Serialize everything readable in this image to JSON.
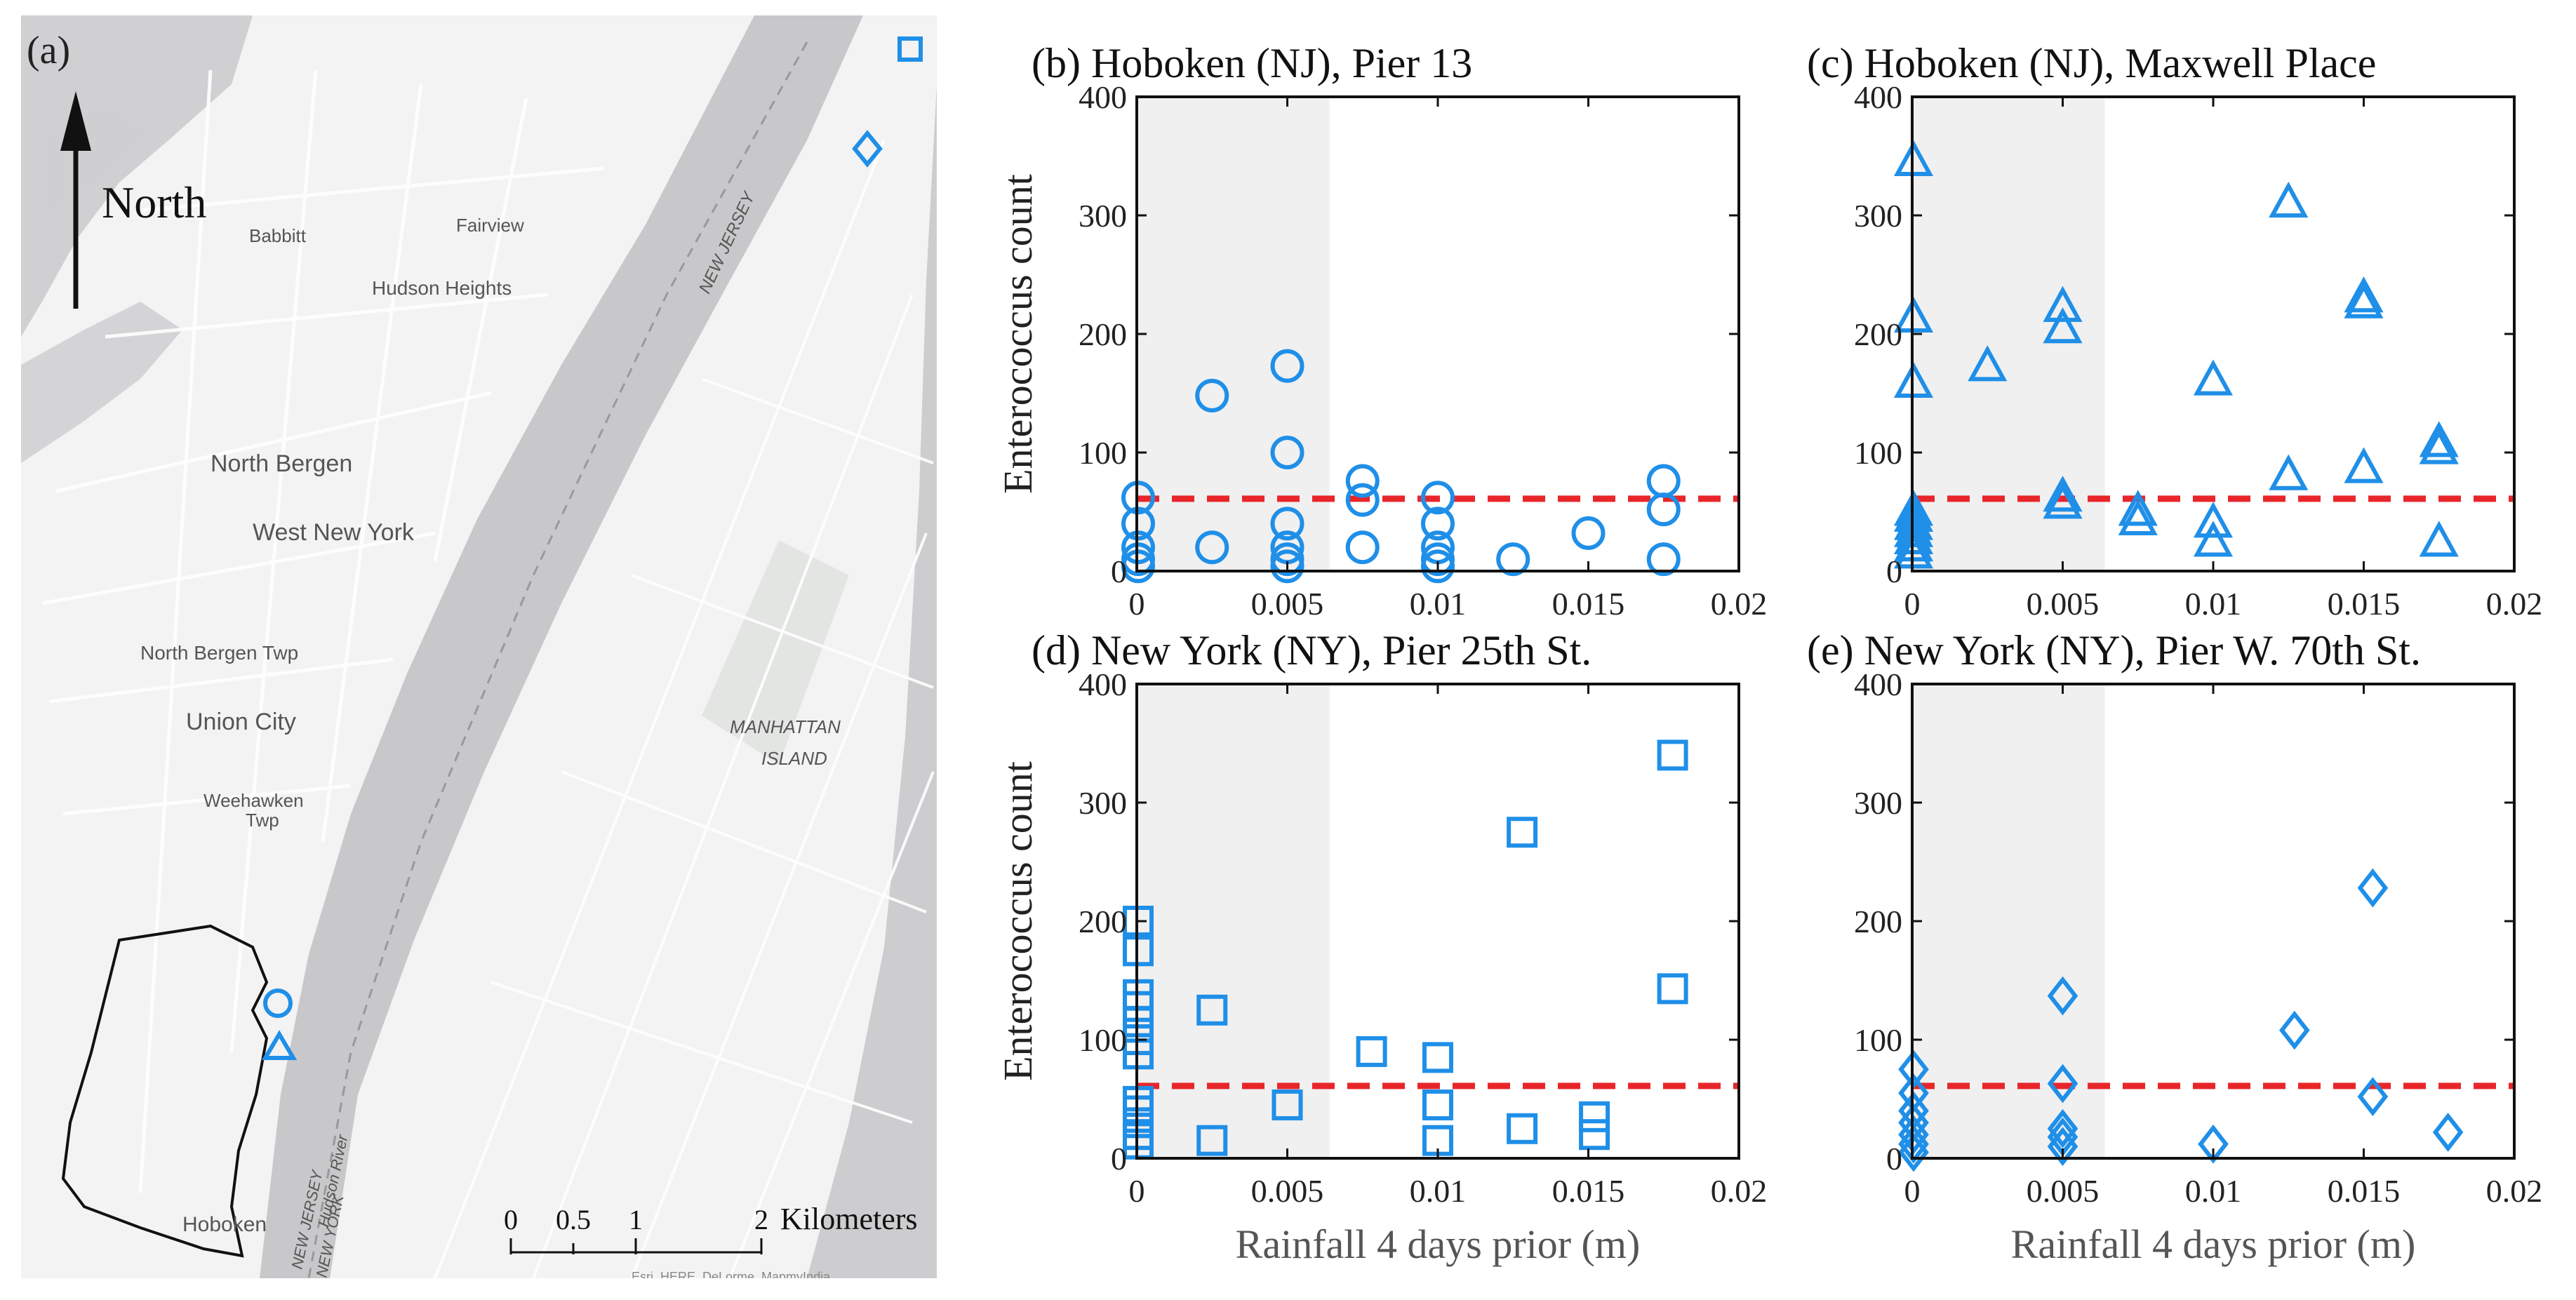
{
  "map": {
    "panel_label": "(a)",
    "north_label": "North",
    "scale_ticks": [
      "0",
      "0.5",
      "1",
      "2"
    ],
    "scale_unit": "Kilometers",
    "attribution": "Esri, HERE, DeLorme, MapmyIndia",
    "place_labels": [
      {
        "text": "Babbitt"
      },
      {
        "text": "Fairview"
      },
      {
        "text": "Hudson Heights"
      },
      {
        "text": "North Bergen"
      },
      {
        "text": "West New York"
      },
      {
        "text": "North Bergen Twp"
      },
      {
        "text": "Union City"
      },
      {
        "text": "Weehawken"
      },
      {
        "text": "Twp"
      },
      {
        "text": "Hoboken"
      },
      {
        "text": "MANHATTAN"
      },
      {
        "text": "ISLAND"
      },
      {
        "text": "NEW JERSEY"
      },
      {
        "text": "Hudson River"
      },
      {
        "text": "NEW JERSEY"
      },
      {
        "text": "NEW YORK"
      }
    ],
    "colors": {
      "water": "#c8c8ca",
      "land": "#f2f2f2",
      "marker": "#1f8fe8"
    }
  },
  "chart_data": [
    {
      "type": "scatter",
      "panel": "(b)",
      "title": "(b) Hoboken (NJ), Pier 13",
      "marker": "circle",
      "ylabel": "Enterococcus count",
      "xlabel": "",
      "xlim": [
        0,
        0.02
      ],
      "ylim": [
        0,
        400
      ],
      "xticks": [
        "0",
        "0.005",
        "0.01",
        "0.015",
        "0.02"
      ],
      "yticks": [
        "0",
        "100",
        "200",
        "300",
        "400"
      ],
      "threshold": 61,
      "shaded_range": [
        0,
        0.0064
      ],
      "x": [
        0,
        0,
        0,
        0,
        0,
        0.0025,
        0.0025,
        0.005,
        0.005,
        0.005,
        0.005,
        0.005,
        0.005,
        0.0075,
        0.0075,
        0.0075,
        0.01,
        0.01,
        0.01,
        0.01,
        0.01,
        0.0125,
        0.015,
        0.0175,
        0.0175,
        0.0175
      ],
      "y": [
        62,
        40,
        20,
        10,
        4,
        148,
        20,
        173,
        100,
        40,
        20,
        10,
        4,
        76,
        60,
        20,
        62,
        40,
        20,
        10,
        4,
        10,
        32,
        76,
        52,
        10
      ]
    },
    {
      "type": "scatter",
      "panel": "(c)",
      "title": "(c) Hoboken (NJ), Maxwell Place",
      "marker": "triangle",
      "ylabel": "",
      "xlabel": "",
      "xlim": [
        0,
        0.02
      ],
      "ylim": [
        0,
        400
      ],
      "xticks": [
        "0",
        "0.005",
        "0.01",
        "0.015",
        "0.02"
      ],
      "yticks": [
        "0",
        "100",
        "200",
        "300",
        "400"
      ],
      "threshold": 61,
      "shaded_range": [
        0,
        0.0064
      ],
      "x": [
        0,
        0,
        0,
        0,
        0,
        0,
        0,
        0,
        0,
        0,
        0.0025,
        0.005,
        0.005,
        0.005,
        0.005,
        0.0075,
        0.0075,
        0.01,
        0.01,
        0.01,
        0.0125,
        0.0125,
        0.015,
        0.015,
        0.015,
        0.0175,
        0.0175,
        0.0175
      ],
      "y": [
        345,
        213,
        158,
        50,
        45,
        38,
        32,
        26,
        20,
        14,
        172,
        222,
        204,
        62,
        56,
        50,
        42,
        160,
        40,
        24,
        310,
        80,
        230,
        225,
        86,
        108,
        102,
        24
      ]
    },
    {
      "type": "scatter",
      "panel": "(d)",
      "title": "(d) New York (NY), Pier 25th St.",
      "marker": "square",
      "ylabel": "Enterococcus count",
      "xlabel": "Rainfall 4 days prior (m)",
      "xlim": [
        0,
        0.02
      ],
      "ylim": [
        0,
        400
      ],
      "xticks": [
        "0",
        "0.005",
        "0.01",
        "0.015",
        "0.02"
      ],
      "yticks": [
        "0",
        "100",
        "200",
        "300",
        "400"
      ],
      "threshold": 61,
      "shaded_range": [
        0,
        0.0064
      ],
      "x": [
        0,
        0,
        0,
        0,
        0,
        0,
        0,
        0,
        0,
        0,
        0,
        0,
        0.0025,
        0.0025,
        0.005,
        0.0078,
        0.01,
        0.01,
        0.01,
        0.0128,
        0.0128,
        0.0152,
        0.0152,
        0.0178,
        0.0178
      ],
      "y": [
        200,
        175,
        138,
        128,
        115,
        100,
        88,
        48,
        40,
        30,
        20,
        12,
        125,
        15,
        45,
        90,
        85,
        45,
        15,
        275,
        25,
        35,
        20,
        340,
        143
      ]
    },
    {
      "type": "scatter",
      "panel": "(e)",
      "title": "(e) New York (NY), Pier W. 70th St.",
      "marker": "diamond",
      "ylabel": "",
      "xlabel": "Rainfall 4 days prior (m)",
      "xlim": [
        0,
        0.02
      ],
      "ylim": [
        0,
        400
      ],
      "xticks": [
        "0",
        "0.005",
        "0.01",
        "0.015",
        "0.02"
      ],
      "yticks": [
        "0",
        "100",
        "200",
        "300",
        "400"
      ],
      "threshold": 61,
      "shaded_range": [
        0,
        0.0064
      ],
      "x": [
        0,
        0,
        0,
        0,
        0,
        0,
        0,
        0.005,
        0.005,
        0.005,
        0.005,
        0.005,
        0.01,
        0.0127,
        0.0153,
        0.0153,
        0.0178
      ],
      "y": [
        75,
        55,
        40,
        30,
        20,
        12,
        5,
        137,
        63,
        25,
        18,
        10,
        12,
        108,
        228,
        52,
        22
      ]
    }
  ],
  "style": {
    "marker_color": "#1f8fe8",
    "threshold_color": "#e8262a",
    "shade_color": "#f0f0f0"
  }
}
